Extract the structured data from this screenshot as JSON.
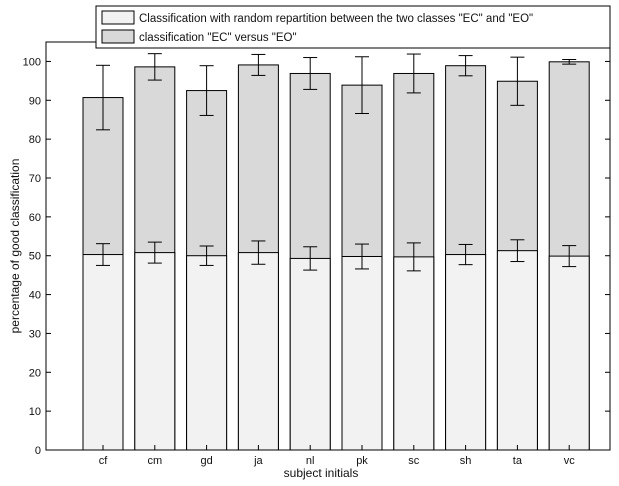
{
  "chart_data": {
    "type": "bar",
    "xlabel": "subject initials",
    "ylabel": "percentage of good classification",
    "ylim": [
      0,
      105
    ],
    "yticks": [
      0,
      10,
      20,
      30,
      40,
      50,
      60,
      70,
      80,
      90,
      100
    ],
    "grid": false,
    "legend_position": "top-right",
    "categories": [
      "cf",
      "cm",
      "gd",
      "ja",
      "nl",
      "pk",
      "sc",
      "sh",
      "ta",
      "vc"
    ],
    "series": [
      {
        "name": "Classification with random repartition between the two classes \"EC\" and \"EO\"",
        "color": "#f2f2f2",
        "values": [
          50.3,
          50.8,
          50.0,
          50.8,
          49.3,
          49.8,
          49.7,
          50.3,
          51.3,
          49.9
        ],
        "error": [
          2.8,
          2.7,
          2.5,
          3.0,
          3.0,
          3.2,
          3.6,
          2.6,
          2.8,
          2.7
        ]
      },
      {
        "name": "classification \"EC\" versus \"EO\"",
        "color": "#d9d9d9",
        "values": [
          90.7,
          98.6,
          92.5,
          99.1,
          96.9,
          93.9,
          96.9,
          98.9,
          94.9,
          99.9
        ],
        "error": [
          8.3,
          3.4,
          6.4,
          2.7,
          4.1,
          7.3,
          5.0,
          2.6,
          6.2,
          0.6
        ]
      }
    ]
  }
}
